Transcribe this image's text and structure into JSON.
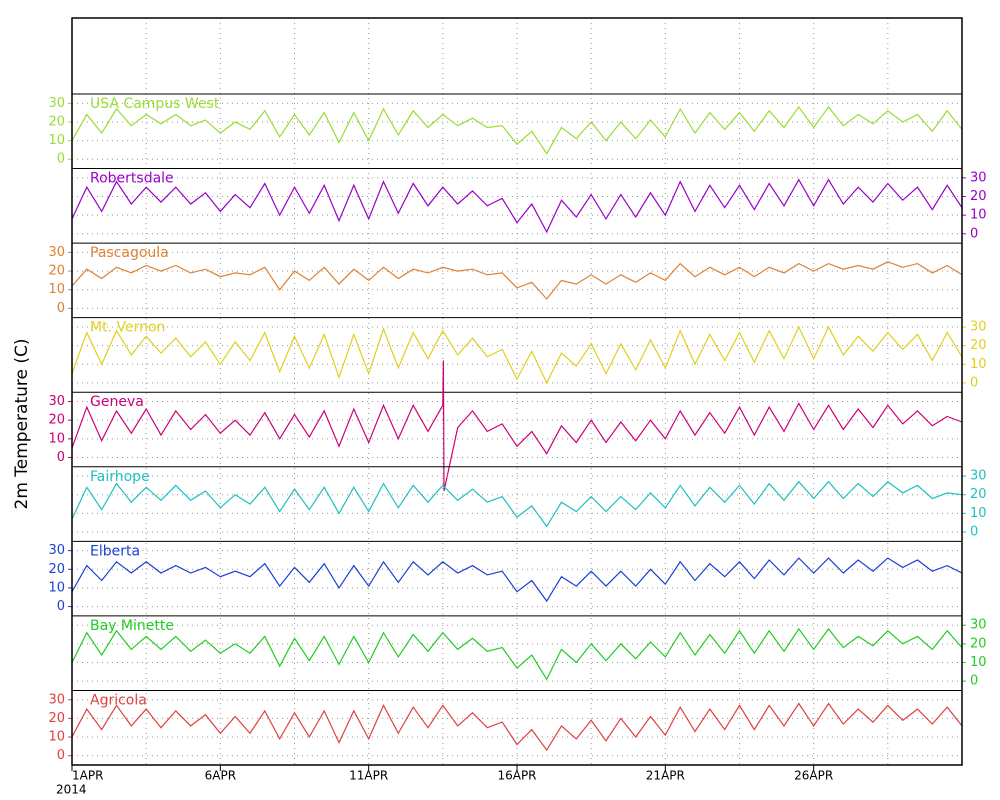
{
  "chart_data": {
    "type": "line",
    "ylabel": "2m Temperature (C)",
    "x": [
      0,
      0.5,
      1,
      1.5,
      2,
      2.5,
      3,
      3.5,
      4,
      4.5,
      5,
      5.5,
      6,
      6.5,
      7,
      7.5,
      8,
      8.5,
      9,
      9.5,
      10,
      10.5,
      11,
      11.5,
      12,
      12.5,
      13,
      13.5,
      14,
      14.5,
      15,
      15.5,
      16,
      16.5,
      17,
      17.5,
      18,
      18.5,
      19,
      19.5,
      20,
      20.5,
      21,
      21.5,
      22,
      22.5,
      23,
      23.5,
      24,
      24.5,
      25,
      25.5,
      26,
      26.5,
      27,
      27.5,
      28,
      28.5,
      29,
      29.5,
      30
    ],
    "xlim": [
      0,
      30
    ],
    "xticks": [
      {
        "value": 0,
        "label": "1APR"
      },
      {
        "value": 5,
        "label": "6APR"
      },
      {
        "value": 10,
        "label": "11APR"
      },
      {
        "value": 15,
        "label": "16APR"
      },
      {
        "value": 20,
        "label": "21APR"
      },
      {
        "value": 25,
        "label": "26APR"
      }
    ],
    "x_sublabel": "2014",
    "xgrid": [
      2.5,
      5,
      7.5,
      10,
      12.5,
      15,
      17.5,
      20,
      22.5,
      25,
      27.5
    ],
    "ylim": [
      -5,
      35
    ],
    "yticks": [
      0,
      10,
      20,
      30
    ],
    "grid": true,
    "series": [
      {
        "name": "USA Campus West",
        "color": "#99dd33",
        "axis_side": "left",
        "values": [
          10,
          24,
          14,
          27,
          18,
          24,
          19,
          24,
          18,
          21,
          14,
          20,
          16,
          26,
          12,
          24,
          13,
          25,
          9,
          25,
          10,
          27,
          13,
          26,
          17,
          24,
          18,
          22,
          17,
          18,
          8,
          15,
          3,
          17,
          11,
          20,
          10,
          20,
          11,
          21,
          12,
          27,
          14,
          25,
          16,
          25,
          15,
          26,
          17,
          28,
          17,
          28,
          18,
          24,
          19,
          26,
          20,
          24,
          15,
          26,
          16
        ]
      },
      {
        "name": "Robertsdale",
        "color": "#9900cc",
        "axis_side": "right",
        "values": [
          8,
          25,
          12,
          28,
          16,
          25,
          17,
          25,
          16,
          22,
          12,
          21,
          14,
          27,
          10,
          25,
          11,
          26,
          7,
          26,
          8,
          28,
          11,
          27,
          15,
          25,
          16,
          23,
          15,
          19,
          6,
          16,
          1,
          18,
          9,
          21,
          8,
          21,
          9,
          22,
          10,
          28,
          12,
          26,
          14,
          26,
          13,
          27,
          15,
          29,
          15,
          29,
          16,
          25,
          17,
          27,
          18,
          25,
          13,
          26,
          14
        ]
      },
      {
        "name": "Pascagoula",
        "color": "#e08030",
        "axis_side": "left",
        "values": [
          12,
          21,
          16,
          22,
          19,
          23,
          20,
          23,
          19,
          21,
          17,
          19,
          18,
          22,
          10,
          20,
          15,
          22,
          13,
          21,
          15,
          22,
          16,
          21,
          19,
          22,
          20,
          21,
          18,
          19,
          11,
          14,
          5,
          15,
          13,
          18,
          13,
          18,
          14,
          19,
          15,
          24,
          17,
          22,
          18,
          22,
          17,
          22,
          19,
          24,
          20,
          24,
          21,
          23,
          21,
          25,
          22,
          24,
          19,
          23,
          18
        ]
      },
      {
        "name": "Mt. Vernon",
        "color": "#e0d020",
        "axis_side": "right",
        "values": [
          5,
          27,
          10,
          28,
          15,
          25,
          16,
          24,
          14,
          22,
          10,
          22,
          12,
          27,
          6,
          25,
          8,
          26,
          3,
          26,
          5,
          29,
          8,
          27,
          13,
          28,
          15,
          24,
          14,
          18,
          2,
          17,
          0,
          16,
          9,
          21,
          5,
          21,
          7,
          23,
          8,
          28,
          10,
          26,
          12,
          27,
          11,
          28,
          13,
          30,
          13,
          30,
          15,
          25,
          17,
          27,
          18,
          26,
          12,
          27,
          14
        ]
      },
      {
        "name": "Geneva",
        "color": "#cc0077",
        "axis_side": "left",
        "x": [
          0,
          0.5,
          1,
          1.5,
          2,
          2.5,
          3,
          3.5,
          4,
          4.5,
          5,
          5.5,
          6,
          6.5,
          7,
          7.5,
          8,
          8.5,
          9,
          9.5,
          10,
          10.5,
          11,
          11.5,
          12,
          12.5,
          12.52,
          12.54,
          13,
          13.5,
          14,
          14.5,
          15,
          15.5,
          16,
          16.5,
          17,
          17.5,
          18,
          18.5,
          19,
          19.5,
          20,
          20.5,
          21,
          21.5,
          22,
          22.5,
          23,
          23.5,
          24,
          24.5,
          25,
          25.5,
          26,
          26.5,
          27,
          27.5,
          28,
          28.5,
          29,
          29.5,
          30
        ],
        "values": [
          5,
          27,
          9,
          25,
          13,
          26,
          12,
          25,
          15,
          23,
          13,
          20,
          12,
          24,
          10,
          23,
          11,
          25,
          6,
          26,
          8,
          28,
          10,
          28,
          14,
          28,
          52,
          -18,
          16,
          25,
          14,
          18,
          6,
          14,
          2,
          17,
          8,
          20,
          8,
          19,
          9,
          20,
          10,
          25,
          12,
          24,
          13,
          27,
          12,
          27,
          14,
          29,
          15,
          28,
          15,
          26,
          16,
          28,
          18,
          25,
          17,
          22,
          19
        ]
      },
      {
        "name": "Fairhope",
        "color": "#20c0c0",
        "axis_side": "right",
        "values": [
          7,
          24,
          12,
          26,
          16,
          24,
          17,
          25,
          17,
          22,
          13,
          20,
          15,
          24,
          11,
          23,
          12,
          24,
          10,
          24,
          11,
          26,
          13,
          25,
          16,
          25,
          17,
          23,
          16,
          19,
          8,
          14,
          3,
          16,
          11,
          19,
          11,
          19,
          12,
          21,
          13,
          25,
          14,
          24,
          16,
          25,
          15,
          26,
          17,
          27,
          18,
          27,
          18,
          26,
          19,
          27,
          21,
          25,
          18,
          21,
          20
        ]
      },
      {
        "name": "Elberta",
        "color": "#1a3fd6",
        "axis_side": "left",
        "values": [
          8,
          22,
          14,
          24,
          18,
          24,
          18,
          22,
          18,
          21,
          16,
          19,
          16,
          23,
          11,
          21,
          13,
          23,
          10,
          22,
          11,
          24,
          13,
          24,
          17,
          24,
          18,
          22,
          17,
          19,
          8,
          14,
          3,
          16,
          11,
          19,
          11,
          19,
          11,
          20,
          12,
          24,
          14,
          23,
          16,
          24,
          15,
          25,
          17,
          26,
          18,
          26,
          18,
          25,
          19,
          26,
          21,
          25,
          19,
          22,
          18
        ]
      },
      {
        "name": "Bay Minette",
        "color": "#22cc22",
        "axis_side": "right",
        "values": [
          10,
          26,
          14,
          27,
          17,
          24,
          17,
          24,
          16,
          22,
          15,
          20,
          15,
          24,
          8,
          23,
          11,
          24,
          9,
          24,
          10,
          26,
          13,
          25,
          16,
          26,
          17,
          23,
          16,
          18,
          7,
          14,
          1,
          17,
          10,
          20,
          11,
          20,
          12,
          21,
          13,
          26,
          14,
          25,
          15,
          27,
          15,
          27,
          16,
          28,
          17,
          28,
          18,
          24,
          19,
          27,
          20,
          24,
          17,
          27,
          18
        ]
      },
      {
        "name": "Agricola",
        "color": "#e04040",
        "axis_side": "left",
        "values": [
          10,
          25,
          14,
          27,
          16,
          25,
          15,
          24,
          16,
          22,
          12,
          21,
          12,
          24,
          9,
          23,
          10,
          24,
          7,
          24,
          9,
          27,
          12,
          26,
          15,
          27,
          16,
          23,
          15,
          18,
          6,
          14,
          3,
          16,
          9,
          19,
          8,
          20,
          10,
          21,
          11,
          26,
          13,
          25,
          14,
          27,
          14,
          27,
          16,
          28,
          16,
          28,
          17,
          25,
          18,
          27,
          19,
          25,
          17,
          26,
          16
        ]
      }
    ]
  }
}
